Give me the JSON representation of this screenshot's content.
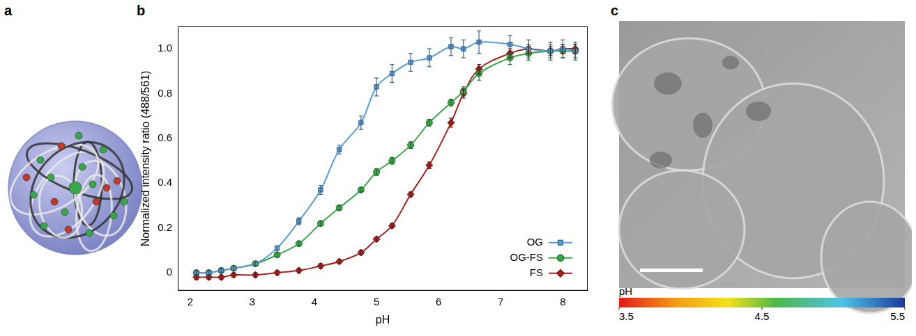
{
  "panel_labels": [
    "a",
    "b",
    "c"
  ],
  "chart_data": {
    "type": "scatter",
    "x_label": "pH",
    "y_label": "Normalized intensity ratio (488/561)",
    "xlim": [
      1.8,
      8.4
    ],
    "ylim": [
      -0.08,
      1.1
    ],
    "xticks": [
      2,
      3,
      4,
      5,
      6,
      7,
      8
    ],
    "yticks": [
      0,
      0.2,
      0.4,
      0.6,
      0.8,
      {
        "value": 1,
        "label": "1.0"
      }
    ],
    "grid": false,
    "legend": "lower right",
    "x": [
      2.1,
      2.3,
      2.5,
      2.7,
      3.05,
      3.4,
      3.75,
      4.1,
      4.4,
      4.75,
      5.0,
      5.25,
      5.55,
      5.85,
      6.2,
      6.4,
      6.65,
      7.15,
      7.45,
      7.8,
      8.0,
      8.2
    ],
    "series": [
      {
        "name": "OG",
        "color": "#5b9bd5",
        "marker": "square",
        "line_style": "solid",
        "values": [
          0,
          0,
          0.01,
          0.02,
          0.04,
          0.11,
          0.23,
          0.37,
          0.55,
          0.67,
          0.83,
          0.89,
          0.94,
          0.96,
          1.01,
          1.0,
          1.03,
          1.02,
          1.0,
          0.99,
          1.0,
          0.99
        ],
        "errors": [
          0.01,
          0.01,
          0.01,
          0.01,
          0.01,
          0.01,
          0.015,
          0.02,
          0.02,
          0.03,
          0.04,
          0.04,
          0.04,
          0.04,
          0.04,
          0.04,
          0.05,
          0.04,
          0.04,
          0.04,
          0.04,
          0.04
        ]
      },
      {
        "name": "OG-FS",
        "color": "#3aa64a",
        "marker": "circle",
        "line_style": "solid",
        "values": [
          0,
          0,
          0.01,
          0.02,
          0.04,
          0.08,
          0.13,
          0.22,
          0.29,
          0.37,
          0.45,
          0.5,
          0.57,
          0.67,
          0.76,
          0.81,
          0.89,
          0.96,
          0.98,
          0.99,
          0.99,
          0.99
        ],
        "errors": [
          0.01,
          0.01,
          0.01,
          0.01,
          0.01,
          0.01,
          0.01,
          0.01,
          0.01,
          0.01,
          0.015,
          0.015,
          0.015,
          0.015,
          0.015,
          0.02,
          0.03,
          0.03,
          0.03,
          0.03,
          0.03,
          0.03
        ]
      },
      {
        "name": "FS",
        "color": "#a3231f",
        "marker": "diamond",
        "line_style": "solid",
        "values": [
          -0.02,
          -0.02,
          -0.02,
          -0.01,
          -0.01,
          0,
          0.01,
          0.03,
          0.05,
          0.09,
          0.15,
          0.21,
          0.35,
          0.48,
          0.67,
          0.8,
          0.91,
          0.98,
          1.0,
          0.99,
          1.0,
          1.0
        ],
        "errors": [
          0.01,
          0.01,
          0.01,
          0.01,
          0.01,
          0.01,
          0.01,
          0.01,
          0.01,
          0.01,
          0.01,
          0.01,
          0.01,
          0.015,
          0.02,
          0.02,
          0.02,
          0.02,
          0.02,
          0.02,
          0.02,
          0.02
        ]
      }
    ]
  },
  "colorbar": {
    "label": "pH",
    "range": [
      3.5,
      5.5
    ],
    "ticks": [
      3.5,
      4.5,
      5.5
    ]
  }
}
